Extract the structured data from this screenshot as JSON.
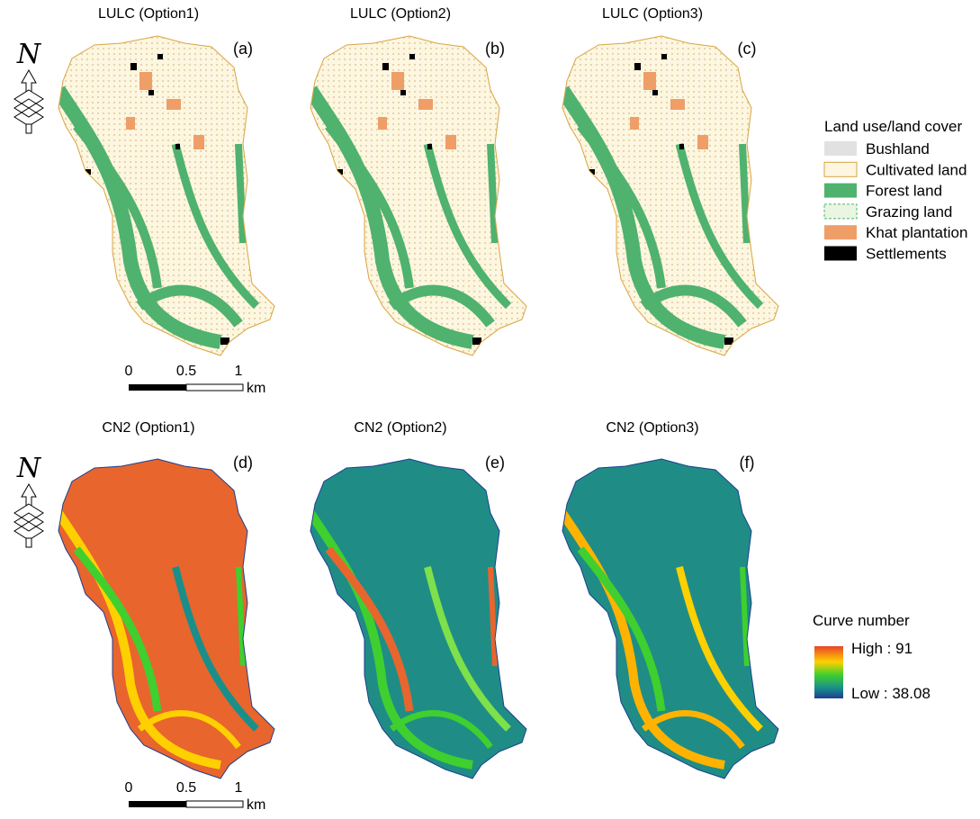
{
  "rows": [
    {
      "north": "N",
      "scale_bar": {
        "ticks": [
          "0",
          "0.5",
          "1"
        ],
        "unit": "km"
      },
      "panels": [
        {
          "title": "LULC (Option1)",
          "label": "(a)"
        },
        {
          "title": "LULC (Option2)",
          "label": "(b)"
        },
        {
          "title": "LULC (Option3)",
          "label": "(c)"
        }
      ]
    },
    {
      "north": "N",
      "scale_bar": {
        "ticks": [
          "0",
          "0.5",
          "1"
        ],
        "unit": "km"
      },
      "panels": [
        {
          "title": "CN2 (Option1)",
          "label": "(d)"
        },
        {
          "title": "CN2 (Option2)",
          "label": "(e)"
        },
        {
          "title": "CN2 (Option3)",
          "label": "(f)"
        }
      ]
    }
  ],
  "lulc_legend": {
    "title": "Land use/land cover",
    "items": [
      {
        "label": "Bushland",
        "color": "#e1e1e1"
      },
      {
        "label": "Cultivated land",
        "color": "#fdf6e0"
      },
      {
        "label": "Forest land",
        "color": "#4fb26e"
      },
      {
        "label": "Grazing land",
        "color": "#eaf5e2"
      },
      {
        "label": "Khat plantation",
        "color": "#ef9e68"
      },
      {
        "label": "Settlements",
        "color": "#000000"
      }
    ]
  },
  "cn_legend": {
    "title": "Curve number",
    "high": "High : 91",
    "low": "Low : 38.08"
  }
}
